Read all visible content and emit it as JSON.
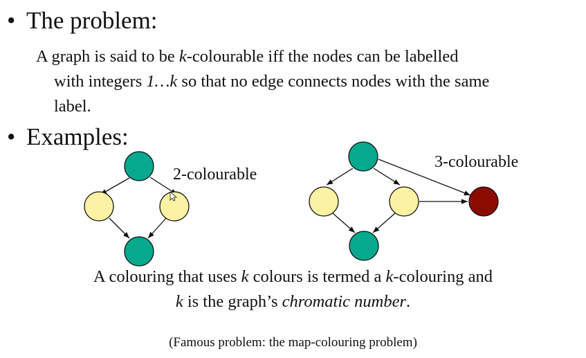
{
  "bullets": [
    {
      "label": "The problem:"
    },
    {
      "label": "Examples:"
    }
  ],
  "definition": {
    "line1_a": "A graph is said to be ",
    "line1_k": "k",
    "line1_b": "-colourable iff the nodes can be labelled",
    "line2_a": "with integers ",
    "line2_range": "1…k",
    "line2_b": " so that no edge connects nodes with the same",
    "line3": "label."
  },
  "examples": {
    "graph1_label": "2-colourable",
    "graph2_label": "3-colourable"
  },
  "colors": {
    "teal": "#06a88e",
    "yellow": "#fbf3a3",
    "darkred": "#8c0b00",
    "stroke": "#111111"
  },
  "caption": {
    "line1_a": "A colouring that uses ",
    "line1_k1": "k",
    "line1_b": " colours is termed a ",
    "line1_k2": "k",
    "line1_c": "-colouring and",
    "line2_k": "k",
    "line2_a": " is the graph’s ",
    "line2_em": "chromatic number",
    "line2_b": "."
  },
  "footnote": "(Famous problem: the map-colouring problem)"
}
